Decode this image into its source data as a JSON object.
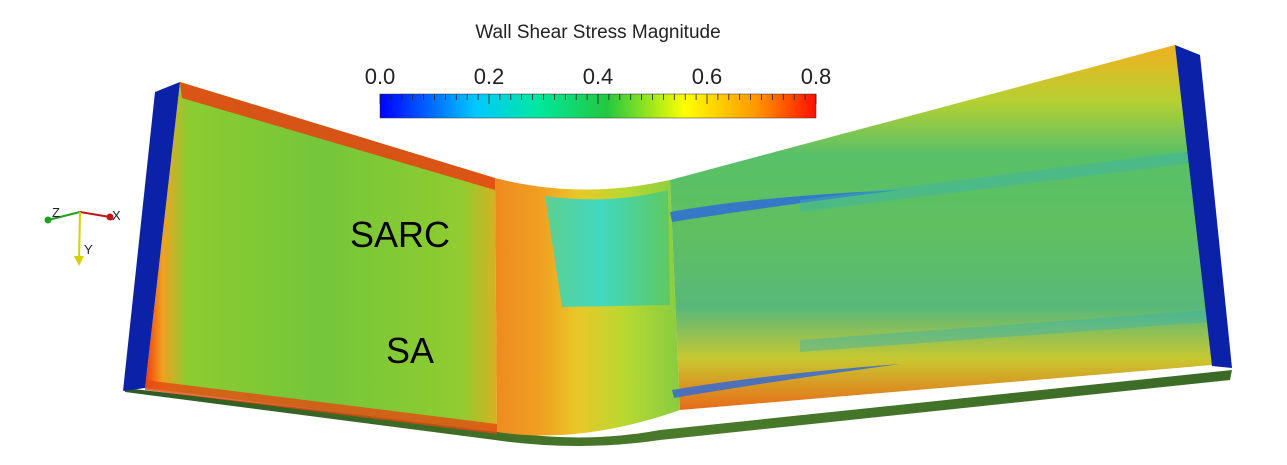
{
  "colorbar": {
    "title": "Wall Shear Stress Magnitude",
    "ticks": [
      "0.0",
      "0.2",
      "0.4",
      "0.6",
      "0.8"
    ],
    "range": [
      0.0,
      0.8
    ],
    "colors": [
      "#0000ff",
      "#00c8ff",
      "#00e676",
      "#22c040",
      "#ffff00",
      "#ff9900",
      "#ff0000"
    ]
  },
  "labels": {
    "top_region": "SARC",
    "bottom_region": "SA"
  },
  "axes_widget": {
    "x": "X",
    "y": "Y",
    "z": "Z"
  },
  "colors": {
    "end_caps": "#0b22a8",
    "bottom_edge": "#3b6d2a",
    "bulk": "#63c23a"
  }
}
